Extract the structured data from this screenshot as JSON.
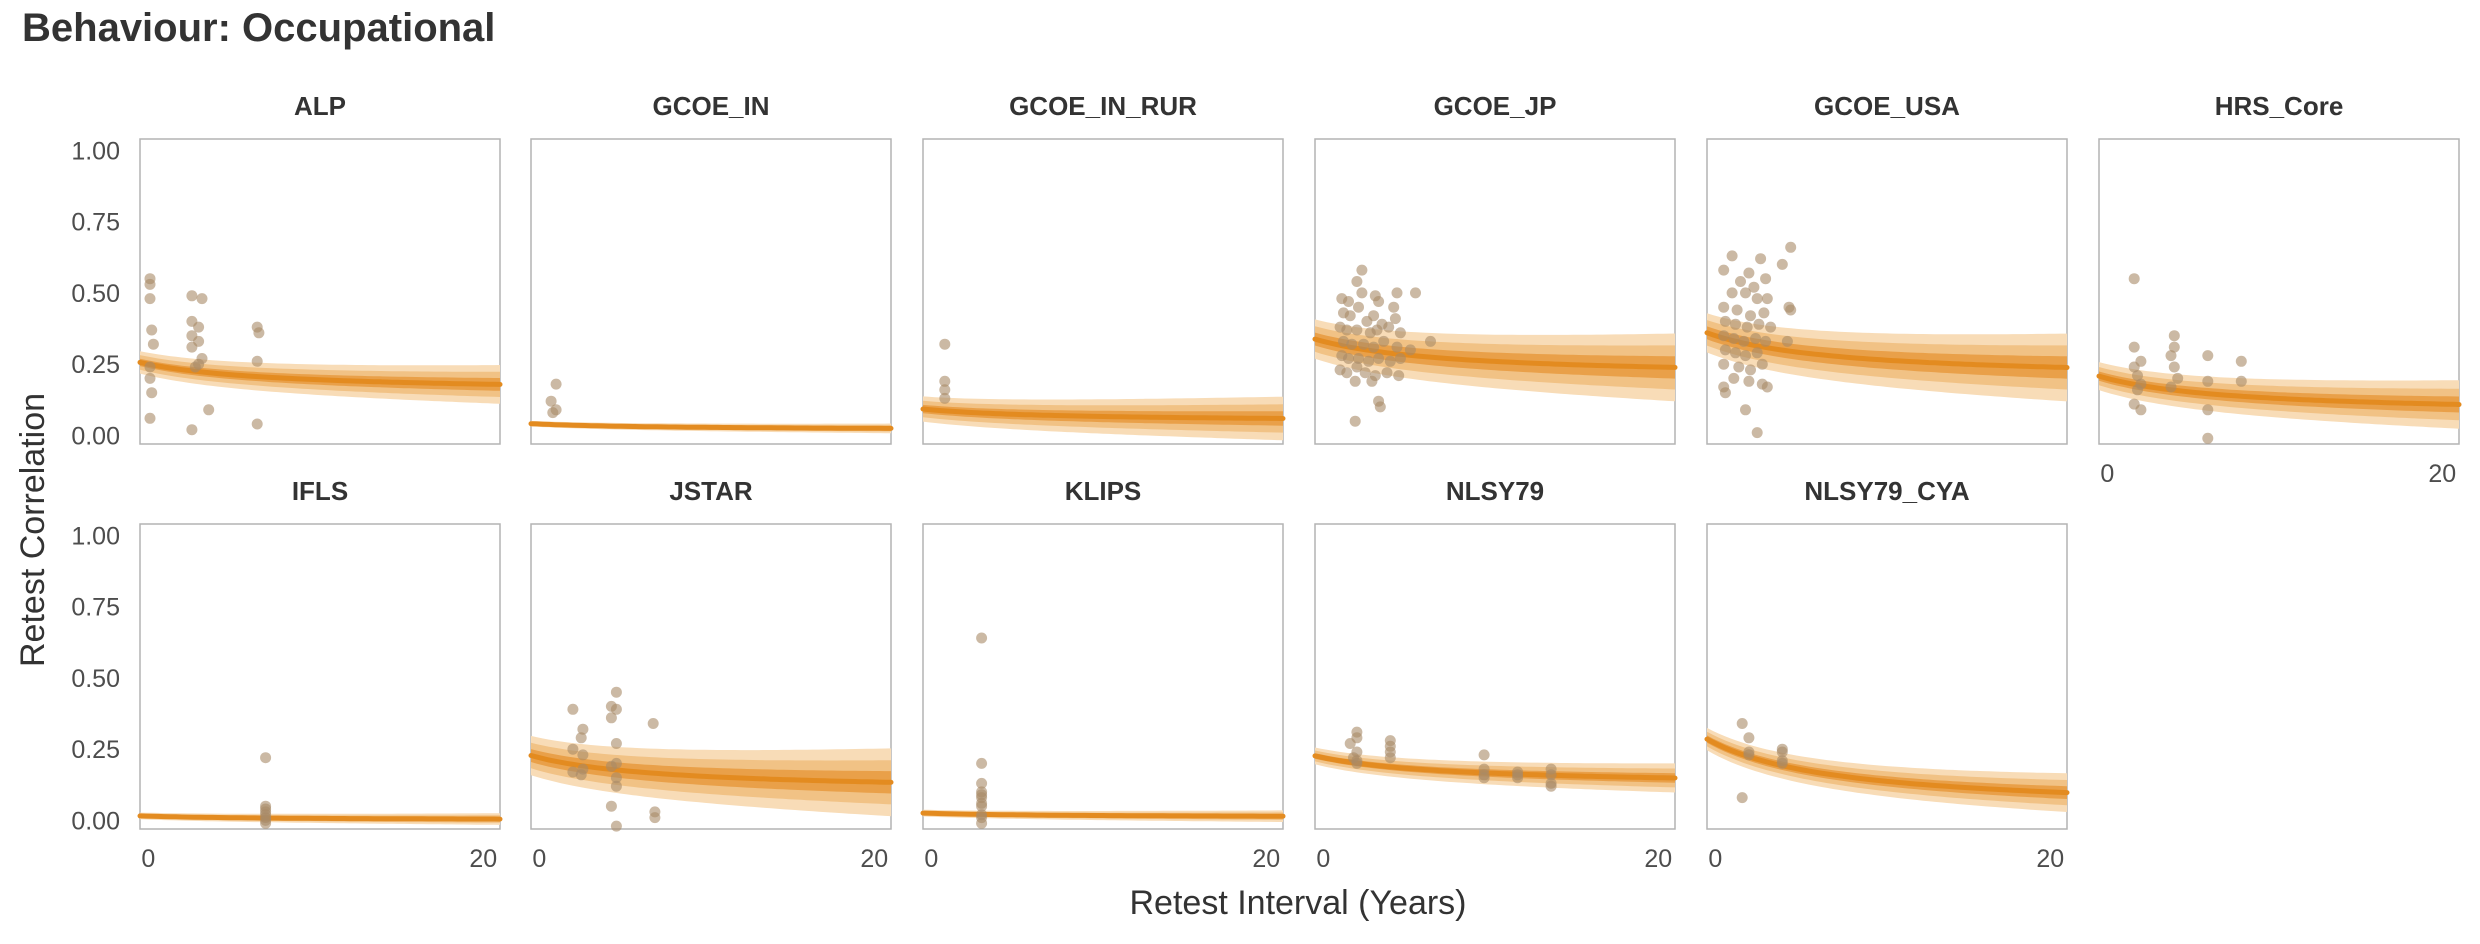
{
  "title": "Behaviour: Occupational",
  "chart_data": {
    "type": "scatter",
    "layout": "faceted grid, 6 columns x 2 rows",
    "xlabel": "Retest Interval (Years)",
    "ylabel": "Retest Correlation",
    "xlim": [
      -0.5,
      21
    ],
    "ylim": [
      -0.03,
      1.04
    ],
    "x_ticks": [
      0,
      20
    ],
    "y_ticks": [
      0.0,
      0.25,
      0.5,
      0.75,
      1.0
    ],
    "y_tick_labels": [
      "0.00",
      "0.25",
      "0.50",
      "0.75",
      "1.00"
    ],
    "colors": {
      "point": "#a88b68",
      "fit_line": "#e38b20",
      "band_inner": "#e9a049",
      "band_middle": "#f1c285",
      "band_outer": "#f8dcb7",
      "panel_border": "#b3b3b3"
    },
    "panels": [
      {
        "name": "ALP",
        "fit": {
          "start": 0.25,
          "end": 0.18,
          "width": 0.04
        },
        "points": [
          [
            0.1,
            0.55
          ],
          [
            0.1,
            0.53
          ],
          [
            0.1,
            0.48
          ],
          [
            0.2,
            0.37
          ],
          [
            0.3,
            0.32
          ],
          [
            0.1,
            0.24
          ],
          [
            0.1,
            0.2
          ],
          [
            0.2,
            0.15
          ],
          [
            0.1,
            0.06
          ],
          [
            2.6,
            0.49
          ],
          [
            3.2,
            0.48
          ],
          [
            2.6,
            0.4
          ],
          [
            3.0,
            0.38
          ],
          [
            2.6,
            0.35
          ],
          [
            3.0,
            0.33
          ],
          [
            2.6,
            0.31
          ],
          [
            3.2,
            0.27
          ],
          [
            3.0,
            0.25
          ],
          [
            2.8,
            0.24
          ],
          [
            3.6,
            0.09
          ],
          [
            2.6,
            0.02
          ],
          [
            6.5,
            0.38
          ],
          [
            6.6,
            0.36
          ],
          [
            6.5,
            0.26
          ],
          [
            6.5,
            0.04
          ]
        ]
      },
      {
        "name": "GCOE_IN",
        "fit": {
          "start": 0.04,
          "end": 0.025,
          "width": 0.01
        },
        "points": [
          [
            1.0,
            0.18
          ],
          [
            0.7,
            0.12
          ],
          [
            1.0,
            0.09
          ],
          [
            0.8,
            0.08
          ]
        ]
      },
      {
        "name": "GCOE_IN_RUR",
        "fit": {
          "start": 0.09,
          "end": 0.06,
          "width": 0.045
        },
        "points": [
          [
            0.8,
            0.32
          ],
          [
            0.8,
            0.19
          ],
          [
            0.8,
            0.16
          ],
          [
            0.8,
            0.13
          ]
        ]
      },
      {
        "name": "GCOE_JP",
        "fit": {
          "start": 0.33,
          "end": 0.24,
          "width": 0.07
        },
        "points": [
          [
            2.3,
            0.58
          ],
          [
            2.0,
            0.54
          ],
          [
            2.3,
            0.5
          ],
          [
            3.1,
            0.49
          ],
          [
            4.4,
            0.5
          ],
          [
            5.5,
            0.5
          ],
          [
            1.1,
            0.48
          ],
          [
            1.5,
            0.47
          ],
          [
            2.1,
            0.45
          ],
          [
            3.3,
            0.47
          ],
          [
            4.2,
            0.45
          ],
          [
            1.2,
            0.43
          ],
          [
            1.6,
            0.42
          ],
          [
            2.6,
            0.4
          ],
          [
            3.0,
            0.42
          ],
          [
            3.5,
            0.39
          ],
          [
            4.3,
            0.41
          ],
          [
            1.0,
            0.38
          ],
          [
            1.4,
            0.37
          ],
          [
            2.0,
            0.37
          ],
          [
            2.8,
            0.36
          ],
          [
            3.2,
            0.37
          ],
          [
            3.9,
            0.38
          ],
          [
            4.6,
            0.36
          ],
          [
            1.2,
            0.33
          ],
          [
            1.7,
            0.32
          ],
          [
            2.4,
            0.32
          ],
          [
            3.0,
            0.31
          ],
          [
            3.6,
            0.33
          ],
          [
            4.4,
            0.31
          ],
          [
            5.2,
            0.3
          ],
          [
            6.4,
            0.33
          ],
          [
            1.1,
            0.28
          ],
          [
            1.5,
            0.27
          ],
          [
            2.1,
            0.27
          ],
          [
            2.7,
            0.26
          ],
          [
            3.3,
            0.27
          ],
          [
            4.0,
            0.26
          ],
          [
            4.6,
            0.27
          ],
          [
            1.0,
            0.23
          ],
          [
            1.4,
            0.22
          ],
          [
            2.0,
            0.24
          ],
          [
            2.5,
            0.22
          ],
          [
            3.1,
            0.21
          ],
          [
            3.8,
            0.22
          ],
          [
            4.5,
            0.21
          ],
          [
            1.9,
            0.19
          ],
          [
            2.9,
            0.19
          ],
          [
            3.3,
            0.12
          ],
          [
            3.4,
            0.1
          ],
          [
            1.9,
            0.05
          ]
        ]
      },
      {
        "name": "GCOE_USA",
        "fit": {
          "start": 0.35,
          "end": 0.24,
          "width": 0.07
        },
        "points": [
          [
            4.5,
            0.66
          ],
          [
            1.0,
            0.63
          ],
          [
            2.7,
            0.62
          ],
          [
            4.0,
            0.6
          ],
          [
            0.5,
            0.58
          ],
          [
            2.0,
            0.57
          ],
          [
            3.0,
            0.55
          ],
          [
            1.5,
            0.54
          ],
          [
            2.3,
            0.52
          ],
          [
            1.0,
            0.5
          ],
          [
            1.8,
            0.5
          ],
          [
            2.5,
            0.48
          ],
          [
            3.1,
            0.48
          ],
          [
            4.4,
            0.45
          ],
          [
            4.5,
            0.44
          ],
          [
            0.5,
            0.45
          ],
          [
            1.3,
            0.44
          ],
          [
            2.1,
            0.42
          ],
          [
            2.9,
            0.43
          ],
          [
            0.6,
            0.4
          ],
          [
            1.2,
            0.39
          ],
          [
            1.9,
            0.38
          ],
          [
            2.6,
            0.39
          ],
          [
            3.3,
            0.38
          ],
          [
            0.5,
            0.35
          ],
          [
            1.1,
            0.34
          ],
          [
            1.7,
            0.33
          ],
          [
            2.4,
            0.34
          ],
          [
            3.0,
            0.33
          ],
          [
            4.3,
            0.33
          ],
          [
            0.6,
            0.3
          ],
          [
            1.2,
            0.29
          ],
          [
            1.8,
            0.28
          ],
          [
            2.5,
            0.29
          ],
          [
            0.5,
            0.25
          ],
          [
            1.4,
            0.24
          ],
          [
            2.1,
            0.23
          ],
          [
            2.8,
            0.25
          ],
          [
            1.1,
            0.2
          ],
          [
            2.0,
            0.19
          ],
          [
            2.8,
            0.18
          ],
          [
            3.1,
            0.17
          ],
          [
            0.5,
            0.17
          ],
          [
            0.6,
            0.15
          ],
          [
            1.8,
            0.09
          ],
          [
            2.5,
            0.01
          ]
        ]
      },
      {
        "name": "HRS_Core",
        "fit": {
          "start": 0.2,
          "end": 0.11,
          "width": 0.05
        },
        "points": [
          [
            1.6,
            0.55
          ],
          [
            1.6,
            0.31
          ],
          [
            2.0,
            0.26
          ],
          [
            1.6,
            0.24
          ],
          [
            1.8,
            0.21
          ],
          [
            2.0,
            0.18
          ],
          [
            1.8,
            0.16
          ],
          [
            1.6,
            0.11
          ],
          [
            2.0,
            0.09
          ],
          [
            4.0,
            0.35
          ],
          [
            4.0,
            0.31
          ],
          [
            3.8,
            0.28
          ],
          [
            4.0,
            0.24
          ],
          [
            4.2,
            0.2
          ],
          [
            3.8,
            0.17
          ],
          [
            6.0,
            0.28
          ],
          [
            6.0,
            0.19
          ],
          [
            6.0,
            0.09
          ],
          [
            6.0,
            -0.01
          ],
          [
            8.0,
            0.26
          ],
          [
            8.0,
            0.19
          ]
        ]
      },
      {
        "name": "IFLS",
        "fit": {
          "start": 0.015,
          "end": 0.005,
          "width": 0.012
        },
        "points": [
          [
            7.0,
            0.22
          ],
          [
            7.0,
            0.05
          ],
          [
            7.0,
            0.04
          ],
          [
            7.0,
            0.03
          ],
          [
            7.0,
            0.02
          ],
          [
            7.0,
            0.01
          ],
          [
            7.0,
            0.0
          ],
          [
            7.0,
            -0.01
          ]
        ]
      },
      {
        "name": "JSTAR",
        "fit": {
          "start": 0.22,
          "end": 0.135,
          "width": 0.07
        },
        "points": [
          [
            2.0,
            0.39
          ],
          [
            2.6,
            0.32
          ],
          [
            2.5,
            0.29
          ],
          [
            2.0,
            0.25
          ],
          [
            2.6,
            0.23
          ],
          [
            2.6,
            0.18
          ],
          [
            2.0,
            0.17
          ],
          [
            2.5,
            0.16
          ],
          [
            4.6,
            0.45
          ],
          [
            4.3,
            0.4
          ],
          [
            4.6,
            0.39
          ],
          [
            4.3,
            0.36
          ],
          [
            4.6,
            0.27
          ],
          [
            4.6,
            0.2
          ],
          [
            4.3,
            0.19
          ],
          [
            4.6,
            0.15
          ],
          [
            4.6,
            0.12
          ],
          [
            4.3,
            0.05
          ],
          [
            4.6,
            -0.02
          ],
          [
            6.8,
            0.34
          ],
          [
            6.9,
            0.03
          ],
          [
            6.9,
            0.01
          ]
        ]
      },
      {
        "name": "KLIPS",
        "fit": {
          "start": 0.025,
          "end": 0.015,
          "width": 0.012
        },
        "points": [
          [
            3.0,
            0.64
          ],
          [
            3.0,
            0.2
          ],
          [
            3.0,
            0.13
          ],
          [
            3.0,
            0.1
          ],
          [
            3.0,
            0.09
          ],
          [
            3.0,
            0.08
          ],
          [
            3.0,
            0.06
          ],
          [
            3.0,
            0.05
          ],
          [
            3.0,
            0.02
          ],
          [
            3.0,
            0.01
          ],
          [
            3.0,
            -0.01
          ]
        ]
      },
      {
        "name": "NLSY79",
        "fit": {
          "start": 0.22,
          "end": 0.15,
          "width": 0.03
        },
        "points": [
          [
            2.0,
            0.31
          ],
          [
            2.0,
            0.29
          ],
          [
            1.6,
            0.27
          ],
          [
            2.0,
            0.24
          ],
          [
            1.8,
            0.22
          ],
          [
            2.0,
            0.21
          ],
          [
            2.0,
            0.2
          ],
          [
            4.0,
            0.28
          ],
          [
            4.0,
            0.26
          ],
          [
            4.0,
            0.24
          ],
          [
            4.0,
            0.22
          ],
          [
            9.6,
            0.23
          ],
          [
            9.6,
            0.18
          ],
          [
            9.6,
            0.16
          ],
          [
            9.6,
            0.15
          ],
          [
            11.6,
            0.17
          ],
          [
            11.6,
            0.16
          ],
          [
            11.6,
            0.15
          ],
          [
            13.6,
            0.18
          ],
          [
            13.6,
            0.16
          ],
          [
            13.6,
            0.13
          ],
          [
            13.6,
            0.12
          ]
        ]
      },
      {
        "name": "NLSY79_CYA",
        "fit": {
          "start": 0.27,
          "end": 0.1,
          "width": 0.04
        },
        "points": [
          [
            1.6,
            0.34
          ],
          [
            2.0,
            0.29
          ],
          [
            2.0,
            0.24
          ],
          [
            2.0,
            0.23
          ],
          [
            1.6,
            0.08
          ],
          [
            4.0,
            0.25
          ],
          [
            4.0,
            0.24
          ],
          [
            4.0,
            0.21
          ],
          [
            4.0,
            0.2
          ]
        ]
      }
    ]
  }
}
